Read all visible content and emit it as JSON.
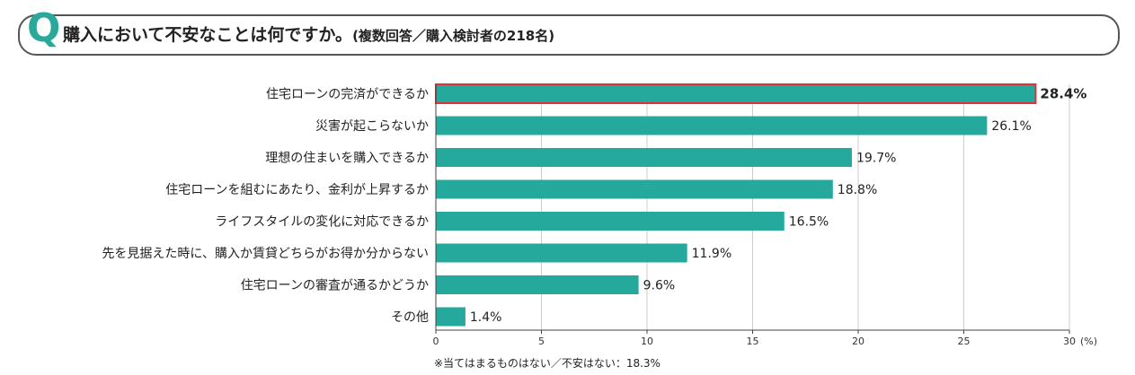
{
  "question": {
    "mark": "Q",
    "title": "購入において不安なことは何ですか。",
    "subtitle": "(複数回答／購入検討者の218名)"
  },
  "chart_data": {
    "type": "bar",
    "orientation": "horizontal",
    "categories": [
      "住宅ローンの完済ができるか",
      "災害が起こらないか",
      "理想の住まいを購入できるか",
      "住宅ローンを組むにあたり、金利が上昇するか",
      "ライフスタイルの変化に対応できるか",
      "先を見据えた時に、購入か賃貸どちらがお得か分からない",
      "住宅ローンの審査が通るかどうか",
      "その他"
    ],
    "values": [
      28.4,
      26.1,
      19.7,
      18.8,
      16.5,
      11.9,
      9.6,
      1.4
    ],
    "value_labels": [
      "28.4%",
      "26.1%",
      "19.7%",
      "18.8%",
      "16.5%",
      "11.9%",
      "9.6%",
      "1.4%"
    ],
    "highlight_index": 0,
    "xlim": [
      0,
      30
    ],
    "xticks": [
      0,
      5,
      10,
      15,
      20,
      25,
      30
    ],
    "xunit": "(%)",
    "grid": true,
    "colors": {
      "bar": "#25a99c",
      "highlight_border": "#d9343a",
      "grid": "#cccccc"
    }
  },
  "note": "※当てはまるものはない／不安はない：18.3%"
}
